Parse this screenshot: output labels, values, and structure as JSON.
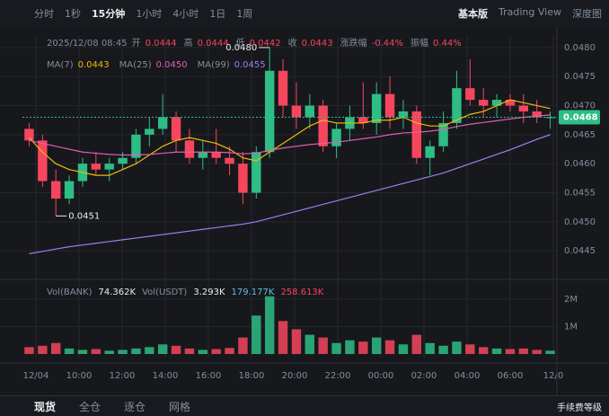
{
  "toolbar": {
    "intervals": [
      "分时",
      "1秒",
      "15分钟",
      "1小时",
      "4小时",
      "1日",
      "1周"
    ],
    "views": [
      "基本版",
      "Trading View",
      "深度图"
    ]
  },
  "chart_data": {
    "type": "candlestick",
    "info": {
      "time": "2025/12/08 08:45",
      "items": [
        {
          "name": "开",
          "value": "0.0444"
        },
        {
          "name": "高",
          "value": "0.0444"
        },
        {
          "name": "低",
          "value": "0.0442"
        },
        {
          "name": "收",
          "value": "0.0443"
        },
        {
          "name": "涨跌幅",
          "value": "-0.44%"
        },
        {
          "name": "振幅",
          "value": "0.44%"
        }
      ]
    },
    "ma_legend": [
      {
        "name": "MA(7)",
        "value": "0.0443",
        "color": "#f0b90b"
      },
      {
        "name": "MA(25)",
        "value": "0.0450",
        "color": "#e05fb4"
      },
      {
        "name": "MA(99)",
        "value": "0.0455",
        "color": "#9d7ef0"
      }
    ],
    "up_color": "#2ebd85",
    "down_color": "#f6465d",
    "candles": [
      [
        0.0466,
        0.0467,
        0.0463,
        0.0464
      ],
      [
        0.0464,
        0.0465,
        0.0456,
        0.0457
      ],
      [
        0.0457,
        0.0459,
        0.0451,
        0.0454
      ],
      [
        0.0454,
        0.0458,
        0.0453,
        0.0457
      ],
      [
        0.0457,
        0.0461,
        0.0456,
        0.046
      ],
      [
        0.046,
        0.0462,
        0.0458,
        0.0459
      ],
      [
        0.0459,
        0.0461,
        0.0457,
        0.046
      ],
      [
        0.046,
        0.0462,
        0.0459,
        0.0461
      ],
      [
        0.0461,
        0.0466,
        0.046,
        0.0465
      ],
      [
        0.0465,
        0.0468,
        0.0463,
        0.0466
      ],
      [
        0.0466,
        0.0472,
        0.0465,
        0.0468
      ],
      [
        0.0468,
        0.0469,
        0.0462,
        0.0464
      ],
      [
        0.0464,
        0.0466,
        0.046,
        0.0461
      ],
      [
        0.0461,
        0.0464,
        0.0459,
        0.0462
      ],
      [
        0.0462,
        0.0466,
        0.046,
        0.0461
      ],
      [
        0.0461,
        0.0463,
        0.0458,
        0.046
      ],
      [
        0.046,
        0.0462,
        0.0453,
        0.0455
      ],
      [
        0.0455,
        0.0463,
        0.0454,
        0.0462
      ],
      [
        0.0462,
        0.048,
        0.0461,
        0.0476
      ],
      [
        0.0476,
        0.0478,
        0.0468,
        0.047
      ],
      [
        0.047,
        0.0474,
        0.0466,
        0.0468
      ],
      [
        0.0468,
        0.0472,
        0.0466,
        0.047
      ],
      [
        0.047,
        0.0471,
        0.0462,
        0.0463
      ],
      [
        0.0463,
        0.0467,
        0.0461,
        0.0466
      ],
      [
        0.0466,
        0.047,
        0.0464,
        0.0468
      ],
      [
        0.0468,
        0.0474,
        0.0466,
        0.0467
      ],
      [
        0.0467,
        0.0474,
        0.0465,
        0.0472
      ],
      [
        0.0472,
        0.0475,
        0.0466,
        0.0468
      ],
      [
        0.0468,
        0.0471,
        0.0466,
        0.0469
      ],
      [
        0.0469,
        0.047,
        0.046,
        0.0461
      ],
      [
        0.0461,
        0.0464,
        0.0458,
        0.0463
      ],
      [
        0.0463,
        0.0469,
        0.0462,
        0.0467
      ],
      [
        0.0467,
        0.0476,
        0.0466,
        0.0473
      ],
      [
        0.0473,
        0.0478,
        0.047,
        0.0471
      ],
      [
        0.0471,
        0.0473,
        0.0468,
        0.047
      ],
      [
        0.047,
        0.0472,
        0.0468,
        0.0471
      ],
      [
        0.0471,
        0.0472,
        0.0469,
        0.047
      ],
      [
        0.047,
        0.0472,
        0.0467,
        0.0469
      ],
      [
        0.0469,
        0.0471,
        0.0467,
        0.0468
      ],
      [
        0.0468,
        0.0469,
        0.0466,
        0.0468
      ]
    ],
    "ma": [
      {
        "name": "MA(7)",
        "color": "#f0b90b",
        "values": [
          0.04645,
          0.0462,
          0.046,
          0.0459,
          0.04585,
          0.0458,
          0.0458,
          0.0459,
          0.046,
          0.04615,
          0.0463,
          0.0464,
          0.04645,
          0.0464,
          0.04635,
          0.04625,
          0.0461,
          0.04605,
          0.0462,
          0.04635,
          0.0465,
          0.04665,
          0.04675,
          0.0467,
          0.0467,
          0.0467,
          0.04675,
          0.04675,
          0.0468,
          0.0467,
          0.04665,
          0.04665,
          0.04675,
          0.04685,
          0.0469,
          0.047,
          0.0471,
          0.04705,
          0.047,
          0.04695
        ]
      },
      {
        "name": "MA(25)",
        "color": "#e05fb4",
        "values": [
          0.0464,
          0.04635,
          0.0463,
          0.04625,
          0.0462,
          0.04618,
          0.04616,
          0.04615,
          0.04615,
          0.04616,
          0.04618,
          0.0462,
          0.0462,
          0.0462,
          0.0462,
          0.04619,
          0.04617,
          0.04618,
          0.04623,
          0.04627,
          0.0463,
          0.04633,
          0.04635,
          0.04637,
          0.0464,
          0.04643,
          0.04646,
          0.0465,
          0.04653,
          0.04654,
          0.04656,
          0.04659,
          0.04664,
          0.04668,
          0.04671,
          0.04674,
          0.04677,
          0.0468,
          0.04682,
          0.04684
        ]
      },
      {
        "name": "MA(99)",
        "color": "#9d7ef0",
        "values": [
          0.04445,
          0.04449,
          0.04453,
          0.04457,
          0.0446,
          0.04463,
          0.04466,
          0.04469,
          0.04472,
          0.04475,
          0.04478,
          0.04481,
          0.04484,
          0.04487,
          0.0449,
          0.04493,
          0.04496,
          0.045,
          0.04506,
          0.04512,
          0.04518,
          0.04524,
          0.0453,
          0.04536,
          0.04542,
          0.04548,
          0.04554,
          0.0456,
          0.04566,
          0.04572,
          0.04578,
          0.04584,
          0.04592,
          0.046,
          0.04608,
          0.04616,
          0.04624,
          0.04633,
          0.04642,
          0.0465
        ]
      }
    ],
    "ylim": [
      0.0441,
      0.0482
    ],
    "yticks": [
      0.0445,
      {
        "value": 0.045,
        "label": "0.0450"
      },
      0.0455,
      {
        "value": 0.046,
        "label": "0.0460"
      },
      0.0465,
      {
        "value": 0.047,
        "label": "0.0470"
      },
      0.0475,
      {
        "value": 0.048,
        "label": "0.0480"
      }
    ],
    "low_label": "0.0451",
    "high_label": "0.0480",
    "last_price": "0.0468",
    "volume": {
      "legend": [
        "Vol(BANK)",
        "74.362K",
        "Vol(USDT)",
        "3.293K",
        "179.177K",
        "258.613K"
      ],
      "values": [
        250000,
        300000,
        400000,
        200000,
        150000,
        180000,
        120000,
        150000,
        200000,
        250000,
        350000,
        300000,
        200000,
        150000,
        180000,
        220000,
        600000,
        1400000,
        2100000,
        1200000,
        900000,
        700000,
        600000,
        400000,
        500000,
        450000,
        600000,
        500000,
        350000,
        700000,
        400000,
        300000,
        450000,
        350000,
        250000,
        200000,
        180000,
        200000,
        150000,
        120000
      ],
      "ylim": [
        0,
        2550000
      ],
      "yticks": [
        {
          "value": 1000000,
          "label": "1M"
        },
        {
          "value": 2000000,
          "label": "2M"
        }
      ]
    },
    "x_labels": [
      "12/04",
      "10:00",
      "12:00",
      "14:00",
      "16:00",
      "18:00",
      "20:00",
      "22:00",
      "00:00",
      "02:00",
      "04:00",
      "06:00",
      "12/0"
    ],
    "grid": true
  },
  "bottom_tabs": [
    "现货",
    "全仓",
    "逐仓",
    "网格"
  ],
  "fee": "手续费等级"
}
